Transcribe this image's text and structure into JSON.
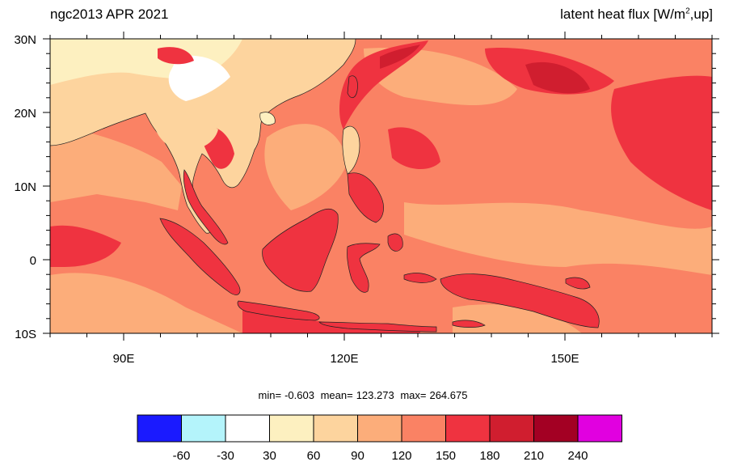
{
  "title_left": "ngc2013 APR 2021",
  "title_right_prefix": "latent heat flux [W/m",
  "title_right_sup": "2",
  "title_right_suffix": ",up]",
  "lat_labels": [
    "30N",
    "20N",
    "10N",
    "0",
    "10S"
  ],
  "lon_labels": [
    "90E",
    "120E",
    "150E"
  ],
  "stats": {
    "min_label": "min=",
    "min_value": "-0.603",
    "mean_label": "mean=",
    "mean_value": "123.273",
    "max_label": "max=",
    "max_value": "264.675"
  },
  "colorbar": {
    "colors": [
      "#1a1aff",
      "#b4f4fb",
      "#ffffff",
      "#fdf0c0",
      "#fdd49e",
      "#fcad7a",
      "#fa8264",
      "#ef3340",
      "#d01e2f",
      "#a30023",
      "#e100e0"
    ],
    "tick_labels": [
      "-60",
      "-30",
      "30",
      "60",
      "90",
      "120",
      "150",
      "180",
      "210",
      "240"
    ]
  },
  "map_colors": {
    "ocean_base": "#fa8264",
    "ocean_light": "#fcad7a",
    "ocean_high": "#ef3340",
    "ocean_peak": "#d01e2f",
    "land_cool": "#fdf0c0",
    "land_warm": "#fdd49e",
    "land_white": "#ffffff",
    "land_hot": "#ef3340",
    "coast": "#222222"
  }
}
